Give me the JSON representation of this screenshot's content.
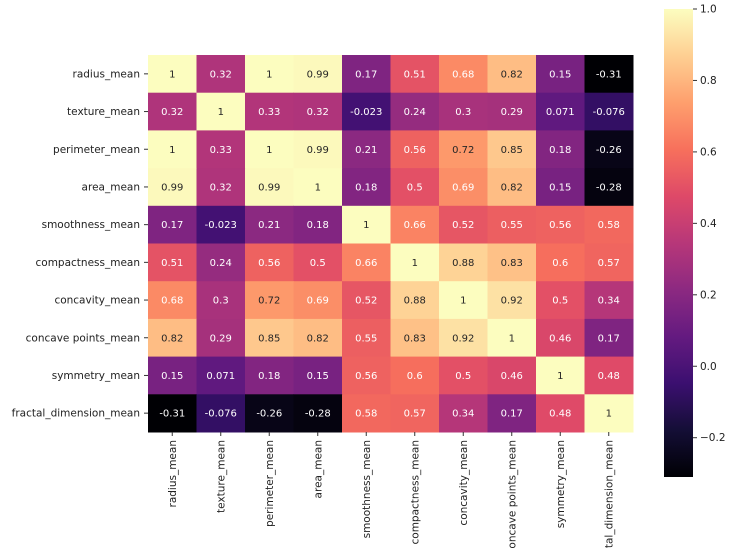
{
  "chart_data": {
    "type": "heatmap",
    "title": "",
    "colormap": "magma",
    "vmin": -0.31,
    "vmax": 1.0,
    "labels": [
      "radius_mean",
      "texture_mean",
      "perimeter_mean",
      "area_mean",
      "smoothness_mean",
      "compactness_mean",
      "concavity_mean",
      "concave points_mean",
      "symmetry_mean",
      "fractal_dimension_mean"
    ],
    "values": [
      [
        1,
        0.32,
        1,
        0.99,
        0.17,
        0.51,
        0.68,
        0.82,
        0.15,
        -0.31
      ],
      [
        0.32,
        1,
        0.33,
        0.32,
        -0.023,
        0.24,
        0.3,
        0.29,
        0.071,
        -0.076
      ],
      [
        1,
        0.33,
        1,
        0.99,
        0.21,
        0.56,
        0.72,
        0.85,
        0.18,
        -0.26
      ],
      [
        0.99,
        0.32,
        0.99,
        1,
        0.18,
        0.5,
        0.69,
        0.82,
        0.15,
        -0.28
      ],
      [
        0.17,
        -0.023,
        0.21,
        0.18,
        1,
        0.66,
        0.52,
        0.55,
        0.56,
        0.58
      ],
      [
        0.51,
        0.24,
        0.56,
        0.5,
        0.66,
        1,
        0.88,
        0.83,
        0.6,
        0.57
      ],
      [
        0.68,
        0.3,
        0.72,
        0.69,
        0.52,
        0.88,
        1,
        0.92,
        0.5,
        0.34
      ],
      [
        0.82,
        0.29,
        0.85,
        0.82,
        0.55,
        0.83,
        0.92,
        1,
        0.46,
        0.17
      ],
      [
        0.15,
        0.071,
        0.18,
        0.15,
        0.56,
        0.6,
        0.5,
        0.46,
        1,
        0.48
      ],
      [
        -0.31,
        -0.076,
        -0.26,
        -0.28,
        0.58,
        0.57,
        0.34,
        0.17,
        0.48,
        1
      ]
    ],
    "colorbar_ticks": [
      "1.0",
      "0.8",
      "0.6",
      "0.4",
      "0.2",
      "0.0",
      "−0.2"
    ],
    "colorbar_tick_values": [
      1.0,
      0.8,
      0.6,
      0.4,
      0.2,
      0.0,
      -0.2
    ],
    "annotated": true,
    "grid": false,
    "legend": "colorbar-right"
  }
}
